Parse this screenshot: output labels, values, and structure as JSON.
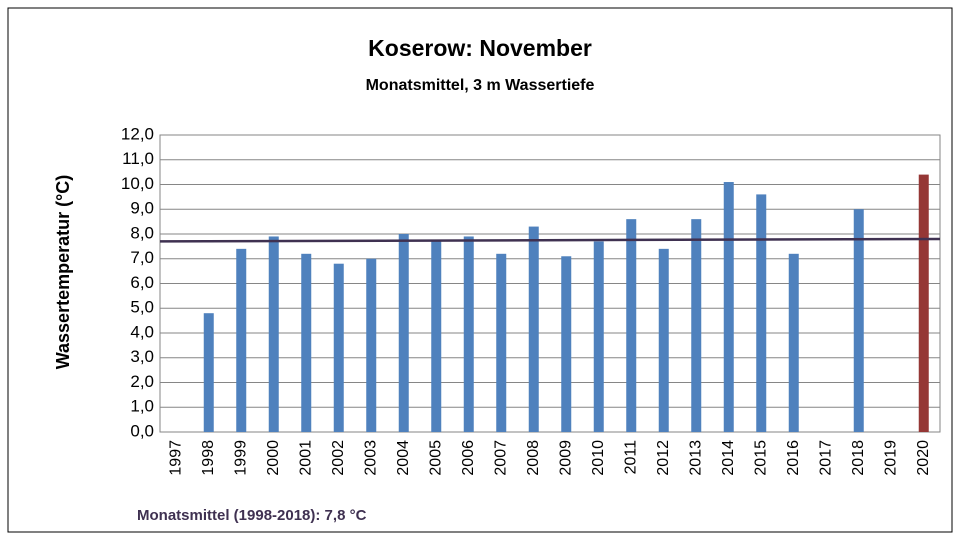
{
  "chart_data": {
    "type": "bar",
    "title": "Koserow: November",
    "subtitle": "Monatsmittel, 3 m Wassertiefe",
    "y_label": "Wassertemperatur (°C)",
    "annotation": "Monatsmittel (1998-2018): 7,8 °C",
    "categories": [
      "1997",
      "1998",
      "1999",
      "2000",
      "2001",
      "2002",
      "2003",
      "2004",
      "2005",
      "2006",
      "2007",
      "2008",
      "2009",
      "2010",
      "2011",
      "2012",
      "2013",
      "2014",
      "2015",
      "2016",
      "2017",
      "2018",
      "2019",
      "2020"
    ],
    "values": [
      null,
      4.8,
      7.4,
      7.9,
      7.2,
      6.8,
      7.0,
      8.0,
      7.7,
      7.9,
      7.2,
      8.3,
      7.1,
      7.7,
      8.6,
      7.4,
      8.6,
      10.1,
      9.6,
      7.2,
      null,
      9.0,
      null,
      10.4
    ],
    "colors": [
      "#4f81bd",
      "#4f81bd",
      "#4f81bd",
      "#4f81bd",
      "#4f81bd",
      "#4f81bd",
      "#4f81bd",
      "#4f81bd",
      "#4f81bd",
      "#4f81bd",
      "#4f81bd",
      "#4f81bd",
      "#4f81bd",
      "#4f81bd",
      "#4f81bd",
      "#4f81bd",
      "#4f81bd",
      "#4f81bd",
      "#4f81bd",
      "#4f81bd",
      "#4f81bd",
      "#4f81bd",
      "#4f81bd",
      "#953735"
    ],
    "mean_line": {
      "values": [
        7.7,
        7.8
      ],
      "color": "#3f3151"
    },
    "ylim": [
      0,
      12
    ],
    "yticks": [
      {
        "value": 0,
        "label": "0,0"
      },
      {
        "value": 1,
        "label": "1,0"
      },
      {
        "value": 2,
        "label": "2,0"
      },
      {
        "value": 3,
        "label": "3,0"
      },
      {
        "value": 4,
        "label": "4,0"
      },
      {
        "value": 5,
        "label": "5,0"
      },
      {
        "value": 6,
        "label": "6,0"
      },
      {
        "value": 7,
        "label": "7,0"
      },
      {
        "value": 8,
        "label": "8,0"
      },
      {
        "value": 9,
        "label": "9,0"
      },
      {
        "value": 10,
        "label": "10,0"
      },
      {
        "value": 11,
        "label": "11,0"
      },
      {
        "value": 12,
        "label": "12,0"
      }
    ],
    "grid": true
  }
}
